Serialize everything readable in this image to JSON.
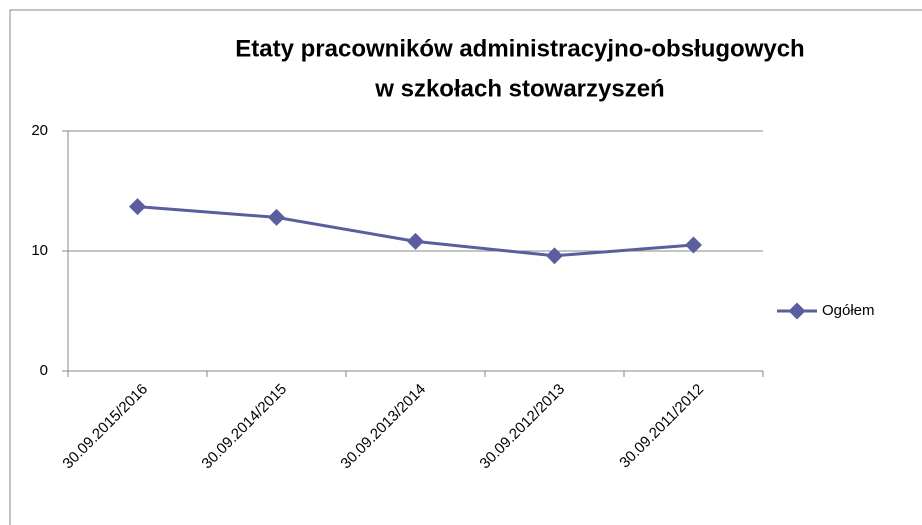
{
  "chart_data": {
    "type": "line",
    "title": [
      "Etaty pracowników administracyjno-obsługowych",
      "w szkołach stowarzyszeń"
    ],
    "categories": [
      "30.09.2015/2016",
      "30.09.2014/2015",
      "30.09.2013/2014",
      "30.09.2012/2013",
      "30.09.2011/2012"
    ],
    "series": [
      {
        "name": "Ogółem",
        "color": "#5b5e9e",
        "values": [
          13.7,
          12.8,
          10.8,
          9.6,
          10.5
        ]
      }
    ],
    "ylim": [
      0,
      20
    ],
    "yticks": [
      0,
      10,
      20
    ],
    "grid": true,
    "legend": "right"
  }
}
